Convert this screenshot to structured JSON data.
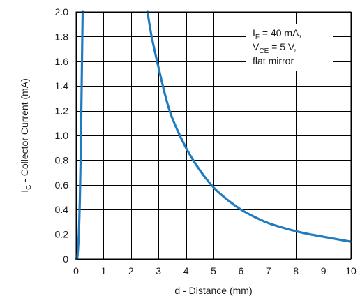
{
  "chart_data": {
    "type": "line",
    "xlabel": "d - Distance (mm)",
    "ylabel": {
      "prefix": "I",
      "sub": "C",
      "rest": " - Collector Current (mA)"
    },
    "xlim": [
      0,
      10
    ],
    "ylim": [
      0,
      2.0
    ],
    "x_ticks": [
      "0",
      "1",
      "2",
      "3",
      "4",
      "5",
      "6",
      "7",
      "8",
      "9",
      "10"
    ],
    "y_ticks": [
      "0",
      "0.2",
      "0.4",
      "0.6",
      "0.8",
      "1.0",
      "1.2",
      "1.4",
      "1.6",
      "1.8",
      "2.0"
    ],
    "grid": true,
    "series_color": "#1f7cc1",
    "series": [
      {
        "x": [
          0.0,
          0.05,
          0.1,
          0.14,
          0.18,
          0.21,
          0.24
        ],
        "y": [
          0.0,
          0.02,
          0.2,
          0.5,
          1.0,
          1.5,
          2.0
        ]
      },
      {
        "x": [
          2.6,
          2.75,
          3.0,
          3.25,
          3.5,
          4.0,
          4.5,
          5.0,
          5.5,
          6.0,
          6.5,
          7.0,
          7.5,
          8.0,
          8.5,
          9.0,
          9.5,
          10.0
        ],
        "y": [
          2.0,
          1.8,
          1.55,
          1.32,
          1.14,
          0.9,
          0.72,
          0.58,
          0.48,
          0.4,
          0.34,
          0.29,
          0.255,
          0.225,
          0.2,
          0.18,
          0.16,
          0.14
        ]
      }
    ],
    "annotation": [
      {
        "prefix": "I",
        "sub": "F",
        "rest": " = 40 mA,"
      },
      {
        "prefix": "V",
        "sub": "CE",
        "rest": " = 5 V,"
      },
      {
        "prefix": "",
        "sub": "",
        "rest": "flat mirror"
      }
    ]
  }
}
